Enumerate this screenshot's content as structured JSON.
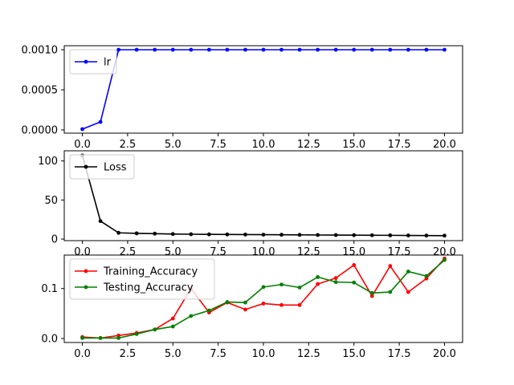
{
  "chart_data": [
    {
      "type": "line",
      "x": [
        0,
        1,
        2,
        3,
        4,
        5,
        6,
        7,
        8,
        9,
        10,
        11,
        12,
        13,
        14,
        15,
        16,
        17,
        18,
        19,
        20
      ],
      "series": [
        {
          "name": "lr",
          "color": "#0000ff",
          "values": [
            1e-05,
            0.0001,
            0.001,
            0.001,
            0.001,
            0.001,
            0.001,
            0.001,
            0.001,
            0.001,
            0.001,
            0.001,
            0.001,
            0.001,
            0.001,
            0.001,
            0.001,
            0.001,
            0.001,
            0.001,
            0.001
          ]
        }
      ],
      "xticks": [
        0,
        2.5,
        5,
        7.5,
        10,
        12.5,
        15,
        17.5,
        20
      ],
      "xtick_labels": [
        "0.0",
        "2.5",
        "5.0",
        "7.5",
        "10.0",
        "12.5",
        "15.0",
        "17.5",
        "20.0"
      ],
      "yticks": [
        0,
        0.0005,
        0.001
      ],
      "ytick_labels": [
        "0.0000",
        "0.0005",
        "0.0010"
      ],
      "xlim": [
        -1,
        21
      ],
      "ylim": [
        -4e-05,
        0.00105
      ],
      "legend": "upper-left",
      "grid": false
    },
    {
      "type": "line",
      "x": [
        0,
        1,
        2,
        3,
        4,
        5,
        6,
        7,
        8,
        9,
        10,
        11,
        12,
        13,
        14,
        15,
        16,
        17,
        18,
        19,
        20
      ],
      "series": [
        {
          "name": "Loss",
          "color": "#000000",
          "values": [
            107,
            23,
            8,
            7.3,
            6.9,
            6.4,
            6.2,
            6,
            5.9,
            5.8,
            5.6,
            5.5,
            5.4,
            5.2,
            5.1,
            5,
            4.9,
            4.8,
            4.6,
            4.5,
            4.4
          ]
        }
      ],
      "xticks": [
        0,
        2.5,
        5,
        7.5,
        10,
        12.5,
        15,
        17.5,
        20
      ],
      "xtick_labels": [
        "0.0",
        "2.5",
        "5.0",
        "7.5",
        "10.0",
        "12.5",
        "15.0",
        "17.5",
        "20.0"
      ],
      "yticks": [
        0,
        50,
        100
      ],
      "ytick_labels": [
        "0",
        "50",
        "100"
      ],
      "xlim": [
        -1,
        21
      ],
      "ylim": [
        -2,
        113
      ],
      "legend": "upper-left",
      "grid": false
    },
    {
      "type": "line",
      "x": [
        0,
        1,
        2,
        3,
        4,
        5,
        6,
        7,
        8,
        9,
        10,
        11,
        12,
        13,
        14,
        15,
        16,
        17,
        18,
        19,
        20
      ],
      "series": [
        {
          "name": "Training_Accuracy",
          "color": "#ff0000",
          "values": [
            0.003,
            0.001,
            0.006,
            0.011,
            0.018,
            0.04,
            0.1,
            0.052,
            0.072,
            0.058,
            0.07,
            0.067,
            0.067,
            0.109,
            0.121,
            0.147,
            0.085,
            0.145,
            0.093,
            0.12,
            0.16
          ]
        },
        {
          "name": "Testing_Accuracy",
          "color": "#008000",
          "values": [
            0.001,
            0.001,
            0.001,
            0.009,
            0.018,
            0.024,
            0.045,
            0.056,
            0.073,
            0.072,
            0.103,
            0.108,
            0.102,
            0.123,
            0.113,
            0.112,
            0.091,
            0.093,
            0.134,
            0.125,
            0.157
          ]
        }
      ],
      "xticks": [
        0,
        2.5,
        5,
        7.5,
        10,
        12.5,
        15,
        17.5,
        20
      ],
      "xtick_labels": [
        "0.0",
        "2.5",
        "5.0",
        "7.5",
        "10.0",
        "12.5",
        "15.0",
        "17.5",
        "20.0"
      ],
      "yticks": [
        0,
        0.1
      ],
      "ytick_labels": [
        "0.0",
        "0.1"
      ],
      "xlim": [
        -1,
        21
      ],
      "ylim": [
        -0.008,
        0.167
      ],
      "legend": "upper-left",
      "grid": false
    }
  ]
}
